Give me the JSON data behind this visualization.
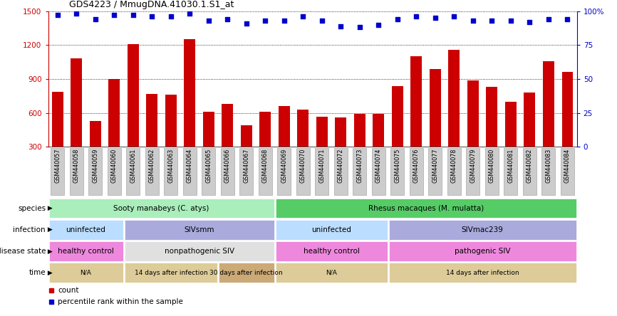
{
  "title": "GDS4223 / MmugDNA.41030.1.S1_at",
  "samples": [
    "GSM440057",
    "GSM440058",
    "GSM440059",
    "GSM440060",
    "GSM440061",
    "GSM440062",
    "GSM440063",
    "GSM440064",
    "GSM440065",
    "GSM440066",
    "GSM440067",
    "GSM440068",
    "GSM440069",
    "GSM440070",
    "GSM440071",
    "GSM440072",
    "GSM440073",
    "GSM440074",
    "GSM440075",
    "GSM440076",
    "GSM440077",
    "GSM440078",
    "GSM440079",
    "GSM440080",
    "GSM440081",
    "GSM440082",
    "GSM440083",
    "GSM440084"
  ],
  "counts": [
    790,
    1080,
    530,
    900,
    1210,
    770,
    760,
    1250,
    610,
    680,
    490,
    610,
    660,
    630,
    570,
    560,
    590,
    590,
    840,
    1100,
    990,
    1160,
    890,
    830,
    700,
    780,
    1060,
    960
  ],
  "percentiles": [
    97,
    98,
    94,
    97,
    97,
    96,
    96,
    98,
    93,
    94,
    91,
    93,
    93,
    96,
    93,
    89,
    88,
    90,
    94,
    96,
    95,
    96,
    93,
    93,
    93,
    92,
    94,
    94
  ],
  "bar_color": "#cc0000",
  "dot_color": "#0000cc",
  "left_ylim": [
    300,
    1500
  ],
  "left_yticks": [
    300,
    600,
    900,
    1200,
    1500
  ],
  "right_ylim": [
    0,
    100
  ],
  "right_yticks": [
    0,
    25,
    50,
    75,
    100
  ],
  "right_yticklabels": [
    "0",
    "25",
    "50",
    "75",
    "100%"
  ],
  "species_items": [
    {
      "text": "Sooty manabeys (C. atys)",
      "start": 0,
      "end": 12,
      "color": "#aaeebb"
    },
    {
      "text": "Rhesus macaques (M. mulatta)",
      "start": 12,
      "end": 28,
      "color": "#55cc66"
    }
  ],
  "infection_items": [
    {
      "text": "uninfected",
      "start": 0,
      "end": 4,
      "color": "#bbddff"
    },
    {
      "text": "SIVsmm",
      "start": 4,
      "end": 12,
      "color": "#aaaadd"
    },
    {
      "text": "uninfected",
      "start": 12,
      "end": 18,
      "color": "#bbddff"
    },
    {
      "text": "SIVmac239",
      "start": 18,
      "end": 28,
      "color": "#aaaadd"
    }
  ],
  "disease_items": [
    {
      "text": "healthy control",
      "start": 0,
      "end": 4,
      "color": "#ee88dd"
    },
    {
      "text": "nonpathogenic SIV",
      "start": 4,
      "end": 12,
      "color": "#e0e0e0"
    },
    {
      "text": "healthy control",
      "start": 12,
      "end": 18,
      "color": "#ee88dd"
    },
    {
      "text": "pathogenic SIV",
      "start": 18,
      "end": 28,
      "color": "#ee88dd"
    }
  ],
  "time_items": [
    {
      "text": "N/A",
      "start": 0,
      "end": 4,
      "color": "#ddcc99"
    },
    {
      "text": "14 days after infection",
      "start": 4,
      "end": 9,
      "color": "#ddcc99"
    },
    {
      "text": "30 days after infection",
      "start": 9,
      "end": 12,
      "color": "#ccaa77"
    },
    {
      "text": "N/A",
      "start": 12,
      "end": 18,
      "color": "#ddcc99"
    },
    {
      "text": "14 days after infection",
      "start": 18,
      "end": 28,
      "color": "#ddcc99"
    }
  ],
  "annot_row_labels": [
    "species",
    "infection",
    "disease state",
    "time"
  ],
  "bg_color": "white",
  "tick_bg_color": "#cccccc",
  "tick_border_color": "#999999"
}
